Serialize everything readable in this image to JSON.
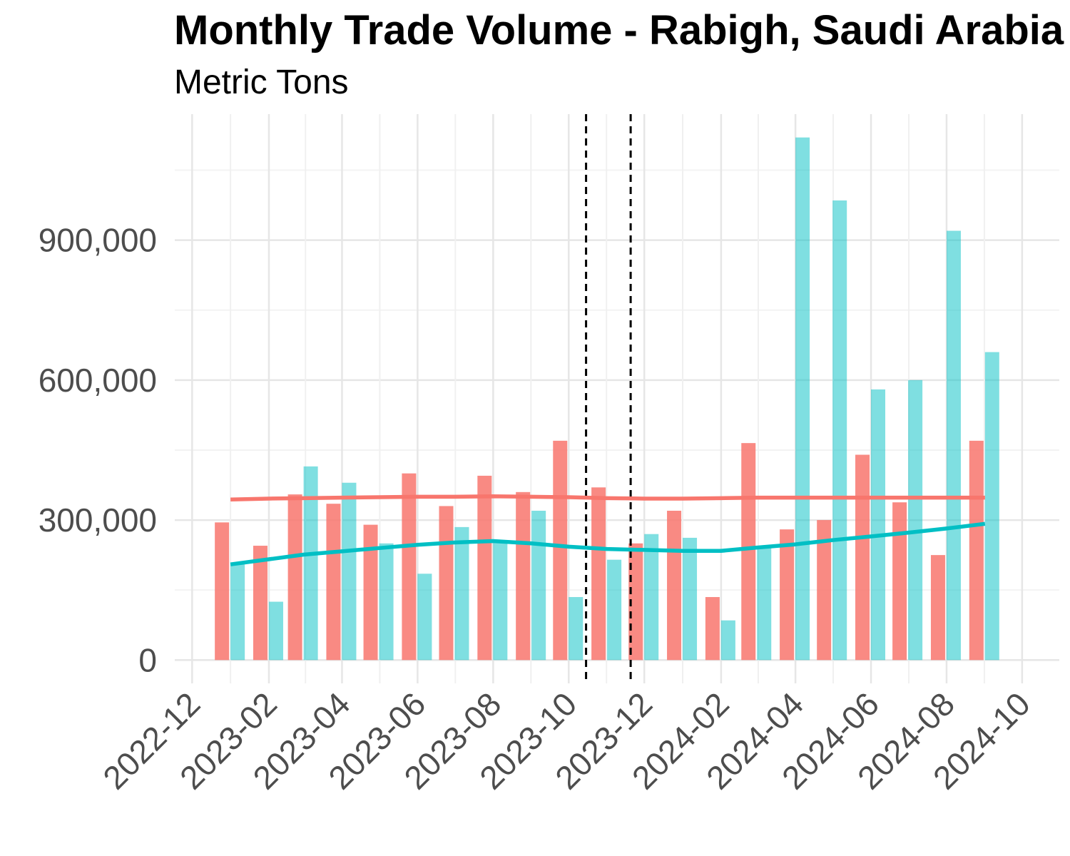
{
  "chart_data": {
    "type": "bar",
    "title": "Monthly Trade Volume - Rabigh, Saudi Arabia",
    "subtitle": "Metric Tons",
    "xlabel": "",
    "ylabel": "",
    "x_ticks": [
      "2022-12",
      "2023-02",
      "2023-04",
      "2023-06",
      "2023-08",
      "2023-10",
      "2023-12",
      "2024-02",
      "2024-04",
      "2024-06",
      "2024-08",
      "2024-10"
    ],
    "y_ticks": [
      "0",
      "300,000",
      "600,000",
      "900,000"
    ],
    "ylim": [
      -50000,
      1170000
    ],
    "grid": true,
    "legend": "none",
    "months": [
      "2023-01",
      "2023-02",
      "2023-03",
      "2023-04",
      "2023-05",
      "2023-06",
      "2023-07",
      "2023-08",
      "2023-09",
      "2023-10",
      "2023-11",
      "2023-12",
      "2024-01",
      "2024-02",
      "2024-03",
      "2024-04",
      "2024-05",
      "2024-06",
      "2024-07",
      "2024-08",
      "2024-09"
    ],
    "series": [
      {
        "color": "#F8766D",
        "bar_values": [
          295000,
          245000,
          355000,
          335000,
          290000,
          400000,
          330000,
          395000,
          360000,
          470000,
          370000,
          250000,
          320000,
          135000,
          465000,
          280000,
          300000,
          440000,
          338000,
          225000,
          470000
        ],
        "trend": [
          344000,
          346000,
          347000,
          348000,
          349000,
          350000,
          350000,
          351000,
          350000,
          349000,
          347000,
          346000,
          346000,
          347000,
          348000,
          348000,
          348000,
          348000,
          348000,
          348000,
          348000
        ]
      },
      {
        "color": "#00BFC4",
        "bar_values": [
          205000,
          125000,
          415000,
          380000,
          250000,
          185000,
          285000,
          255000,
          320000,
          135000,
          215000,
          270000,
          262000,
          85000,
          240000,
          1120000,
          985000,
          580000,
          600000,
          920000,
          660000
        ],
        "trend": [
          205000,
          216000,
          226000,
          233000,
          240000,
          247000,
          252000,
          255000,
          250000,
          243000,
          238000,
          236000,
          234000,
          234000,
          241000,
          248000,
          257000,
          265000,
          273000,
          282000,
          292000
        ]
      }
    ],
    "vlines": [
      "2023-10-15",
      "2023-11-20"
    ]
  }
}
